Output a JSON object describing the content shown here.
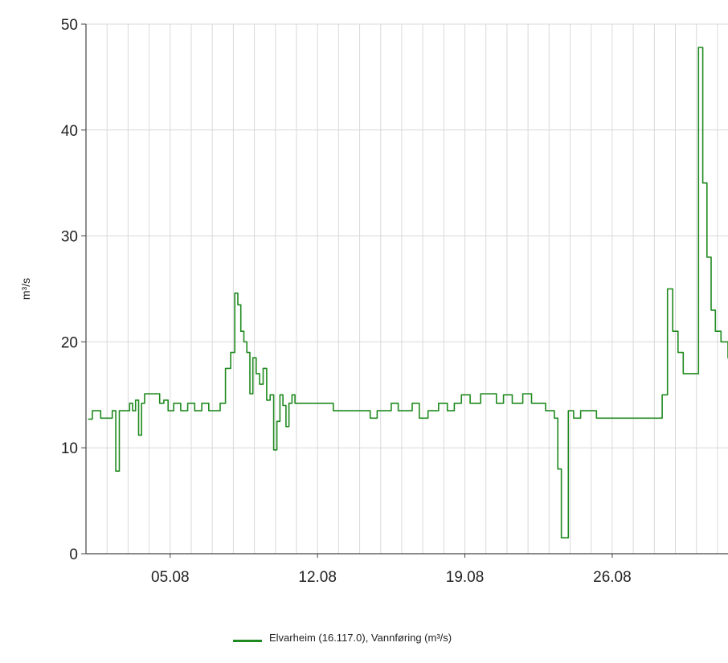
{
  "chart_data": {
    "type": "line",
    "ylabel": "m³/s",
    "ylim": [
      0,
      50
    ],
    "yticks": [
      0,
      10,
      20,
      30,
      40,
      50
    ],
    "xlim": [
      "2019-08-01",
      "2019-08-31"
    ],
    "xticks": [
      {
        "date": "2019-08-05",
        "label": "05.08"
      },
      {
        "date": "2019-08-12",
        "label": "12.08"
      },
      {
        "date": "2019-08-19",
        "label": "19.08"
      },
      {
        "date": "2019-08-26",
        "label": "26.08"
      }
    ],
    "grid": {
      "vertical": true,
      "horizontal": true
    },
    "legend_position": "bottom",
    "series": [
      {
        "name": "Elvarheim (16.117.0), Vannføring (m³/s)",
        "color": "#1f8a1f",
        "x": [
          "2019-08-01",
          "2019-08-01",
          "2019-08-01",
          "2019-08-01",
          "2019-08-01",
          "2019-08-02",
          "2019-08-02",
          "2019-08-02",
          "2019-08-02",
          "2019-08-02",
          "2019-08-02",
          "2019-08-03",
          "2019-08-03",
          "2019-08-03",
          "2019-08-03",
          "2019-08-03",
          "2019-08-03",
          "2019-08-03",
          "2019-08-04",
          "2019-08-04",
          "2019-08-04",
          "2019-08-04",
          "2019-08-04",
          "2019-08-05",
          "2019-08-05",
          "2019-08-05",
          "2019-08-06",
          "2019-08-06",
          "2019-08-06",
          "2019-08-07",
          "2019-08-07",
          "2019-08-07",
          "2019-08-07",
          "2019-08-08",
          "2019-08-08",
          "2019-08-08",
          "2019-08-08",
          "2019-08-08",
          "2019-08-08",
          "2019-08-08",
          "2019-08-09",
          "2019-08-09",
          "2019-08-09",
          "2019-08-09",
          "2019-08-09",
          "2019-08-09",
          "2019-08-10",
          "2019-08-10",
          "2019-08-10",
          "2019-08-10",
          "2019-08-10",
          "2019-08-10",
          "2019-08-10",
          "2019-08-11",
          "2019-08-11",
          "2019-08-12",
          "2019-08-12",
          "2019-08-13",
          "2019-08-13",
          "2019-08-14",
          "2019-08-14",
          "2019-08-14",
          "2019-08-15",
          "2019-08-15",
          "2019-08-15",
          "2019-08-16",
          "2019-08-16",
          "2019-08-16",
          "2019-08-17",
          "2019-08-17",
          "2019-08-18",
          "2019-08-18",
          "2019-08-18",
          "2019-08-19",
          "2019-08-19",
          "2019-08-20",
          "2019-08-20",
          "2019-08-20",
          "2019-08-21",
          "2019-08-21",
          "2019-08-22",
          "2019-08-22",
          "2019-08-22",
          "2019-08-23",
          "2019-08-23",
          "2019-08-23",
          "2019-08-23",
          "2019-08-23",
          "2019-08-23",
          "2019-08-24",
          "2019-08-24",
          "2019-08-24",
          "2019-08-25",
          "2019-08-25",
          "2019-08-26",
          "2019-08-26",
          "2019-08-27",
          "2019-08-27",
          "2019-08-28",
          "2019-08-28",
          "2019-08-28",
          "2019-08-28",
          "2019-08-29",
          "2019-08-29",
          "2019-08-29",
          "2019-08-29",
          "2019-08-30",
          "2019-08-30",
          "2019-08-30",
          "2019-08-30",
          "2019-08-30",
          "2019-08-31",
          "2019-08-31",
          "2019-08-31"
        ],
        "y": [
          12.7,
          13.5,
          13.5,
          12.8,
          12.8,
          12.8,
          13.5,
          7.8,
          13.5,
          13.5,
          13.5,
          14.2,
          13.5,
          14.5,
          11.2,
          14.2,
          15.1,
          15.1,
          15.1,
          15.1,
          14.2,
          14.5,
          13.5,
          14.2,
          13.5,
          14.2,
          13.5,
          14.2,
          13.5,
          13.5,
          14.2,
          17.5,
          19.0,
          24.6,
          23.5,
          21.0,
          20.0,
          19.0,
          15.1,
          18.5,
          17.0,
          16.0,
          17.5,
          14.5,
          15.0,
          9.8,
          12.5,
          15.0,
          14.0,
          12.0,
          14.2,
          15.0,
          14.2,
          14.2,
          14.2,
          14.2,
          13.5,
          13.5,
          13.5,
          13.5,
          12.8,
          13.5,
          13.5,
          14.2,
          13.5,
          13.5,
          14.2,
          12.8,
          13.5,
          14.2,
          13.5,
          14.2,
          15.0,
          14.2,
          15.1,
          15.1,
          14.2,
          15.0,
          14.2,
          15.1,
          14.2,
          14.2,
          13.5,
          13.5,
          12.8,
          8.0,
          1.5,
          1.5,
          13.5,
          12.8,
          13.5,
          13.5,
          12.8,
          12.8,
          12.8,
          12.8,
          12.8,
          12.8,
          12.8,
          15.0,
          25.0,
          21.0,
          19.0,
          17.0,
          17.0,
          17.0,
          47.8,
          35.0,
          28.0,
          23.0,
          21.0,
          20.0,
          18.5,
          16.8
        ]
      }
    ]
  }
}
